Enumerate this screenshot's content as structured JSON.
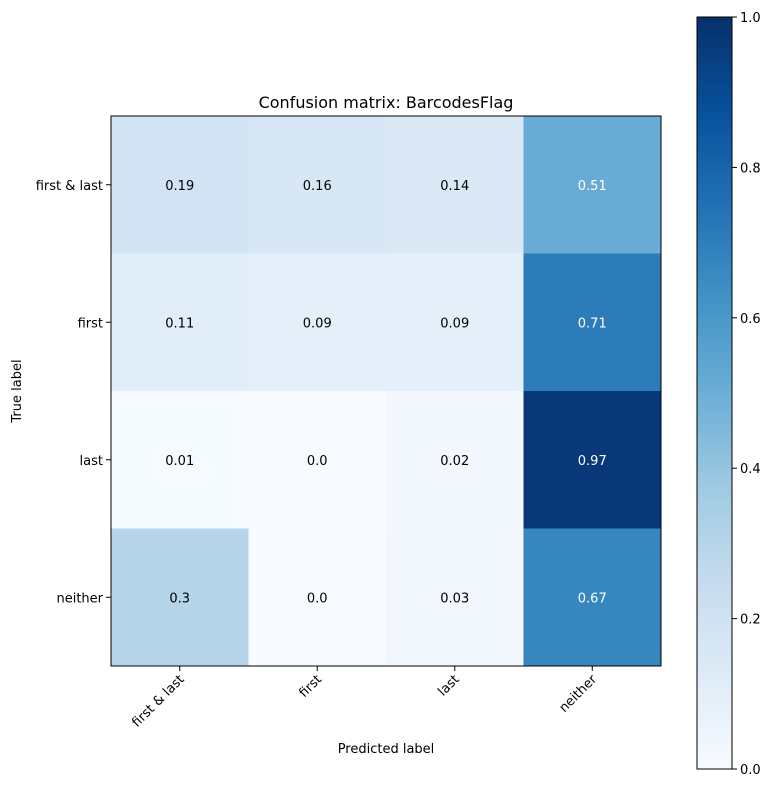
{
  "chart_data": {
    "type": "heatmap",
    "title": "Confusion matrix: BarcodesFlag",
    "xlabel": "Predicted label",
    "ylabel": "True label",
    "x_categories": [
      "first & last",
      "first",
      "last",
      "neither"
    ],
    "y_categories": [
      "first & last",
      "first",
      "last",
      "neither"
    ],
    "values": [
      [
        0.19,
        0.16,
        0.14,
        0.51
      ],
      [
        0.11,
        0.09,
        0.09,
        0.71
      ],
      [
        0.01,
        0.0,
        0.02,
        0.97
      ],
      [
        0.3,
        0.0,
        0.03,
        0.67
      ]
    ],
    "value_labels": [
      [
        "0.19",
        "0.16",
        "0.14",
        "0.51"
      ],
      [
        "0.11",
        "0.09",
        "0.09",
        "0.71"
      ],
      [
        "0.01",
        "0.0",
        "0.02",
        "0.97"
      ],
      [
        "0.3",
        "0.0",
        "0.03",
        "0.67"
      ]
    ],
    "colormap": "Blues",
    "colorbar": {
      "range": [
        0.0,
        1.0
      ],
      "ticks": [
        0.0,
        0.2,
        0.4,
        0.6,
        0.8,
        1.0
      ],
      "tick_labels": [
        "0.0",
        "0.2",
        "0.4",
        "0.6",
        "0.8",
        "1.0"
      ]
    },
    "x_tick_rotation_deg": 45
  }
}
